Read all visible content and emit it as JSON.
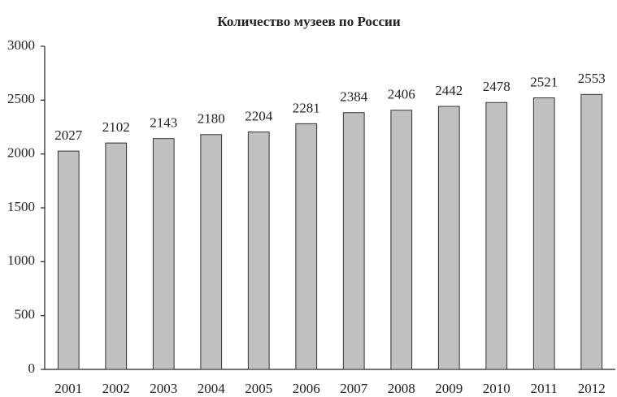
{
  "chart_data": {
    "type": "bar",
    "title": "Количество музеев по России",
    "categories": [
      "2001",
      "2002",
      "2003",
      "2004",
      "2005",
      "2006",
      "2007",
      "2008",
      "2009",
      "2010",
      "2011",
      "2012"
    ],
    "values": [
      2027,
      2102,
      2143,
      2180,
      2204,
      2281,
      2384,
      2406,
      2442,
      2478,
      2521,
      2553
    ],
    "color": "#c0c0c0",
    "ylim": [
      0,
      3000
    ],
    "yticks": [
      0,
      500,
      1000,
      1500,
      2000,
      2500,
      3000
    ],
    "grid": false
  }
}
